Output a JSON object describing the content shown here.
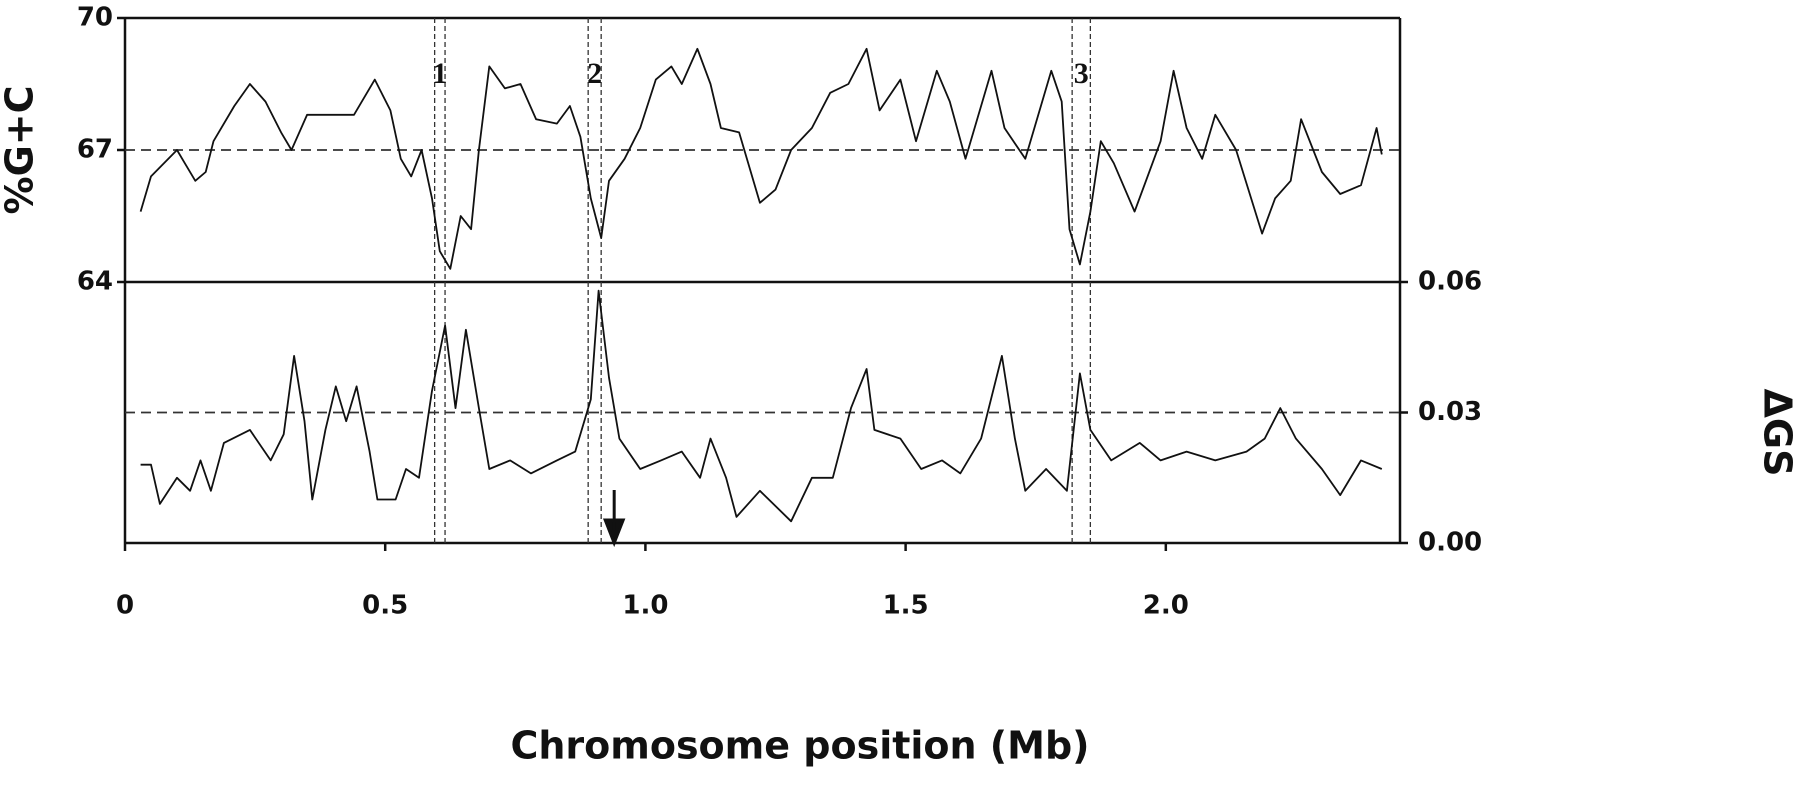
{
  "chart_data": [
    {
      "type": "line",
      "ylabel": "%G+C",
      "xlim": [
        0,
        2.45
      ],
      "ylim": [
        64,
        70
      ],
      "yticks": [
        64,
        67,
        70
      ],
      "hline": 67,
      "color": "#111111",
      "regions": [
        {
          "label": "1",
          "x": [
            0.595,
            0.615
          ]
        },
        {
          "label": "2",
          "x": [
            0.89,
            0.915
          ]
        },
        {
          "label": "3",
          "x": [
            1.82,
            1.855
          ]
        }
      ],
      "x": [
        0.03,
        0.05,
        0.1,
        0.115,
        0.135,
        0.155,
        0.17,
        0.21,
        0.24,
        0.27,
        0.3,
        0.32,
        0.35,
        0.39,
        0.44,
        0.48,
        0.51,
        0.53,
        0.55,
        0.57,
        0.59,
        0.605,
        0.625,
        0.645,
        0.665,
        0.68,
        0.7,
        0.73,
        0.76,
        0.79,
        0.83,
        0.855,
        0.875,
        0.895,
        0.915,
        0.93,
        0.96,
        0.99,
        1.02,
        1.05,
        1.07,
        1.1,
        1.125,
        1.145,
        1.18,
        1.22,
        1.25,
        1.28,
        1.32,
        1.355,
        1.39,
        1.425,
        1.45,
        1.49,
        1.52,
        1.56,
        1.585,
        1.615,
        1.665,
        1.69,
        1.73,
        1.78,
        1.8,
        1.815,
        1.835,
        1.855,
        1.875,
        1.9,
        1.94,
        1.99,
        2.015,
        2.04,
        2.07,
        2.095,
        2.135,
        2.185,
        2.21,
        2.24,
        2.26,
        2.3,
        2.335,
        2.375,
        2.405,
        2.415
      ],
      "values": [
        65.6,
        66.4,
        67.0,
        66.7,
        66.3,
        66.5,
        67.2,
        68.0,
        68.5,
        68.1,
        67.4,
        67.0,
        67.8,
        67.8,
        67.8,
        68.6,
        67.9,
        66.8,
        66.4,
        67.0,
        65.9,
        64.7,
        64.3,
        65.5,
        65.2,
        67.0,
        68.9,
        68.4,
        68.5,
        67.7,
        67.6,
        68.0,
        67.3,
        65.9,
        65.0,
        66.3,
        66.8,
        67.5,
        68.6,
        68.9,
        68.5,
        69.3,
        68.5,
        67.5,
        67.4,
        65.8,
        66.1,
        67.0,
        67.5,
        68.3,
        68.5,
        69.3,
        67.9,
        68.6,
        67.2,
        68.8,
        68.1,
        66.8,
        68.8,
        67.5,
        66.8,
        68.8,
        68.1,
        65.2,
        64.4,
        65.6,
        67.2,
        66.7,
        65.6,
        67.2,
        68.8,
        67.5,
        66.8,
        67.8,
        67.0,
        65.1,
        65.9,
        66.3,
        67.7,
        66.5,
        66.0,
        66.2,
        67.5,
        66.9
      ]
    },
    {
      "type": "line",
      "ylabel": "ΔGS",
      "xlabel": "Chromosome position (Mb)",
      "xlim": [
        0,
        2.45
      ],
      "ylim": [
        0,
        0.06
      ],
      "yticks": [
        {
          "value": 0,
          "label": "0.00"
        },
        0.03,
        0.06
      ],
      "xticks": [
        0,
        0.5,
        {
          "value": 1,
          "label": "1.0"
        },
        1.5,
        {
          "value": 2,
          "label": "2.0"
        }
      ],
      "hline": 0.03,
      "arrow_x": 0.94,
      "color": "#111111",
      "x": [
        0.03,
        0.05,
        0.067,
        0.1,
        0.125,
        0.145,
        0.165,
        0.19,
        0.24,
        0.28,
        0.305,
        0.325,
        0.345,
        0.36,
        0.385,
        0.405,
        0.425,
        0.445,
        0.47,
        0.485,
        0.52,
        0.54,
        0.565,
        0.59,
        0.615,
        0.635,
        0.655,
        0.68,
        0.7,
        0.74,
        0.78,
        0.83,
        0.865,
        0.895,
        0.91,
        0.93,
        0.95,
        0.99,
        1.03,
        1.07,
        1.105,
        1.125,
        1.155,
        1.175,
        1.22,
        1.28,
        1.32,
        1.36,
        1.395,
        1.425,
        1.44,
        1.49,
        1.53,
        1.57,
        1.605,
        1.645,
        1.685,
        1.71,
        1.73,
        1.77,
        1.81,
        1.835,
        1.855,
        1.895,
        1.95,
        1.99,
        2.04,
        2.095,
        2.155,
        2.19,
        2.22,
        2.25,
        2.3,
        2.335,
        2.375,
        2.415
      ],
      "values": [
        0.018,
        0.018,
        0.009,
        0.015,
        0.012,
        0.019,
        0.012,
        0.023,
        0.026,
        0.019,
        0.025,
        0.043,
        0.028,
        0.01,
        0.026,
        0.036,
        0.028,
        0.036,
        0.021,
        0.01,
        0.01,
        0.017,
        0.015,
        0.035,
        0.05,
        0.031,
        0.049,
        0.031,
        0.017,
        0.019,
        0.016,
        0.019,
        0.021,
        0.033,
        0.058,
        0.038,
        0.024,
        0.017,
        0.019,
        0.021,
        0.015,
        0.024,
        0.015,
        0.006,
        0.012,
        0.005,
        0.015,
        0.015,
        0.031,
        0.04,
        0.026,
        0.024,
        0.017,
        0.019,
        0.016,
        0.024,
        0.043,
        0.024,
        0.012,
        0.017,
        0.012,
        0.039,
        0.026,
        0.019,
        0.023,
        0.019,
        0.021,
        0.019,
        0.021,
        0.024,
        0.031,
        0.024,
        0.017,
        0.011,
        0.019,
        0.017
      ]
    }
  ]
}
